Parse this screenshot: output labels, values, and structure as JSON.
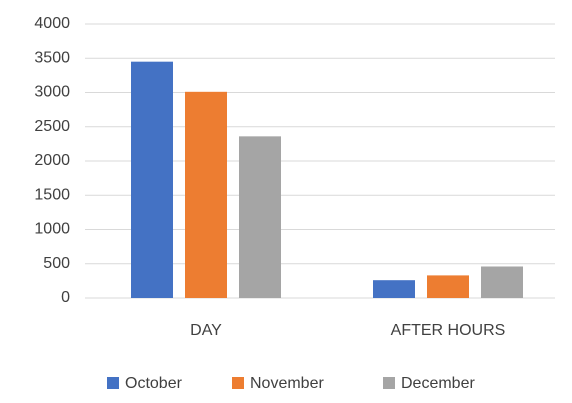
{
  "chart_data": {
    "type": "bar",
    "categories": [
      "DAY",
      "AFTER HOURS"
    ],
    "series": [
      {
        "name": "October",
        "color": "#4472c4",
        "values": [
          3450,
          260
        ]
      },
      {
        "name": "November",
        "color": "#ed7d31",
        "values": [
          3010,
          330
        ]
      },
      {
        "name": "December",
        "color": "#a5a5a5",
        "values": [
          2360,
          460
        ]
      }
    ],
    "ylim": [
      0,
      4000
    ],
    "yticks": [
      0,
      500,
      1000,
      1500,
      2000,
      2500,
      3000,
      3500,
      4000
    ],
    "grid": true,
    "legend": "bottom"
  }
}
